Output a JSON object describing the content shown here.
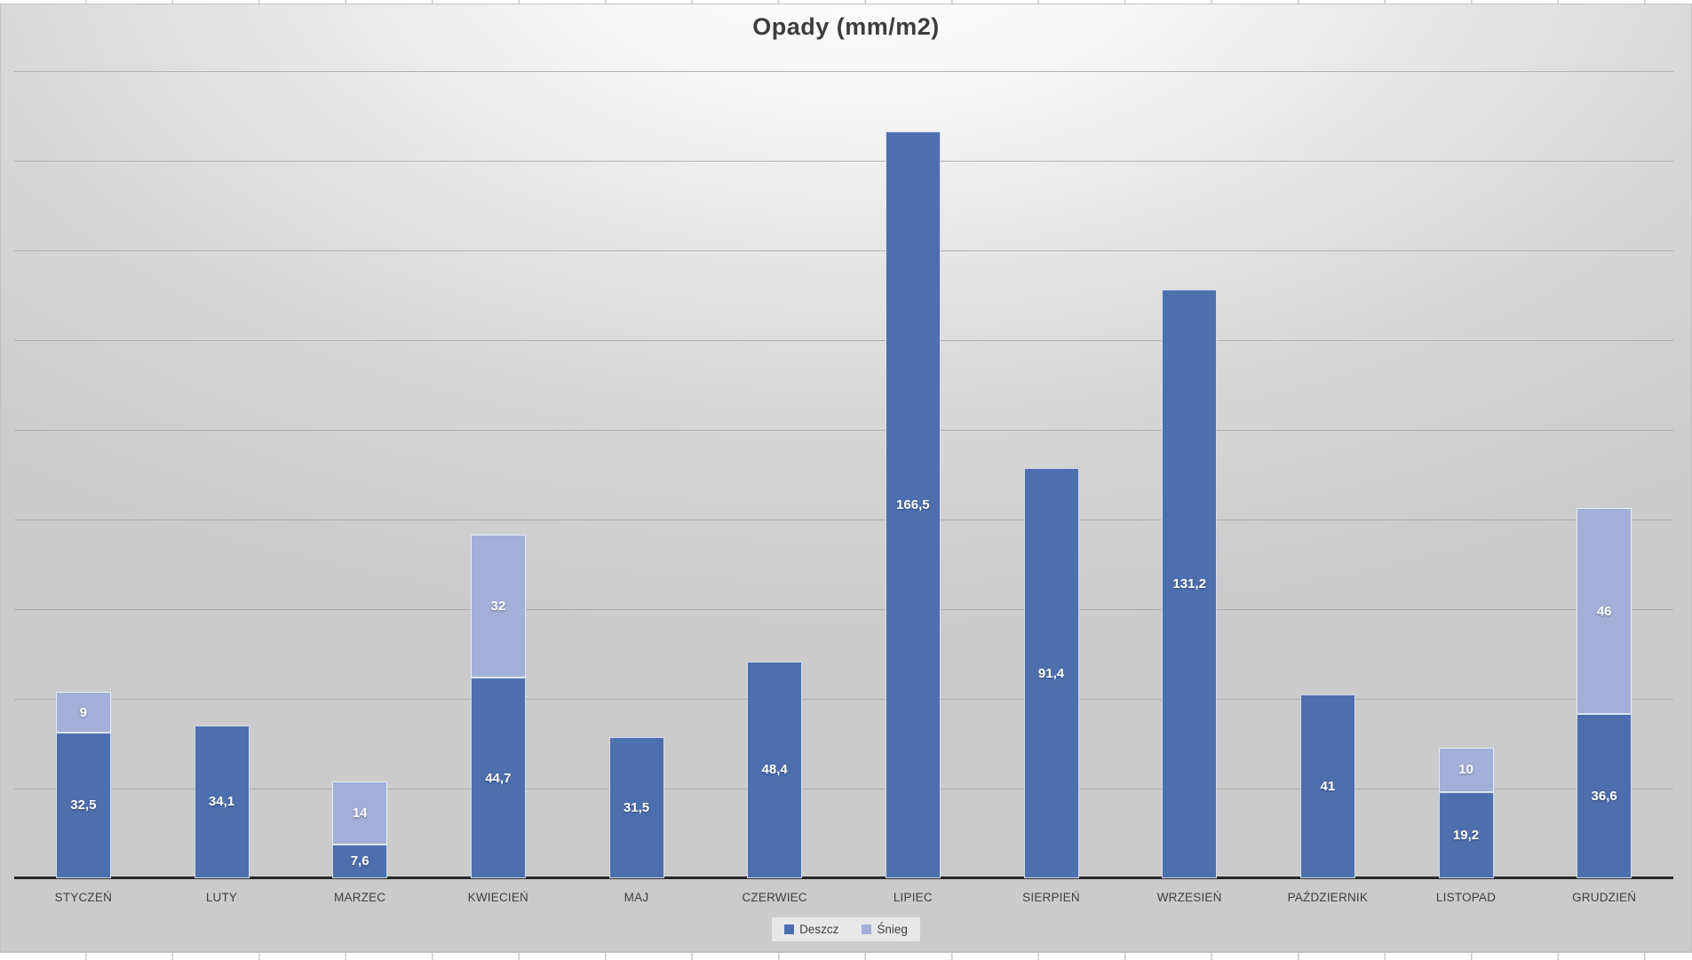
{
  "chart_data": {
    "type": "bar",
    "stacked": true,
    "title": "Opady (mm/m2)",
    "categories": [
      "STYCZEŃ",
      "LUTY",
      "MARZEC",
      "KWIECIEŃ",
      "MAJ",
      "CZERWIEC",
      "LIPIEC",
      "SIERPIEŃ",
      "WRZESIEŃ",
      "PAŹDZIERNIK",
      "LISTOPAD",
      "GRUDZIEŃ"
    ],
    "series": [
      {
        "name": "Deszcz",
        "color": "#4e6fae",
        "values": [
          32.5,
          34.1,
          7.6,
          44.7,
          31.5,
          48.4,
          166.5,
          91.4,
          131.2,
          41,
          19.2,
          36.6
        ],
        "labels": [
          "32,5",
          "34,1",
          "7,6",
          "44,7",
          "31,5",
          "48,4",
          "166,5",
          "91,4",
          "131,2",
          "41",
          "19,2",
          "36,6"
        ]
      },
      {
        "name": "Śnieg",
        "color": "#a1afd9",
        "values": [
          9,
          0,
          14,
          32,
          0,
          0,
          0,
          0,
          0,
          0,
          10,
          46
        ],
        "labels": [
          "9",
          "",
          "14",
          "32",
          "",
          "",
          "",
          "",
          "",
          "",
          "10",
          "46"
        ]
      }
    ],
    "ylim": [
      0,
      180
    ],
    "y_gridline_step": 20,
    "grid": true,
    "y_axis_tick_labels_visible": false,
    "xlabel": "",
    "ylabel": "",
    "legend_position": "bottom",
    "data_label_color": "#ffffff"
  },
  "colors": {
    "gridline": "#a8a8a8",
    "axis_line": "#262626",
    "title_text": "#3d3d3d",
    "category_text": "#3f3f3f",
    "chart_bg_center": "#ffffff",
    "chart_bg_edge": "#cbcbcb"
  }
}
